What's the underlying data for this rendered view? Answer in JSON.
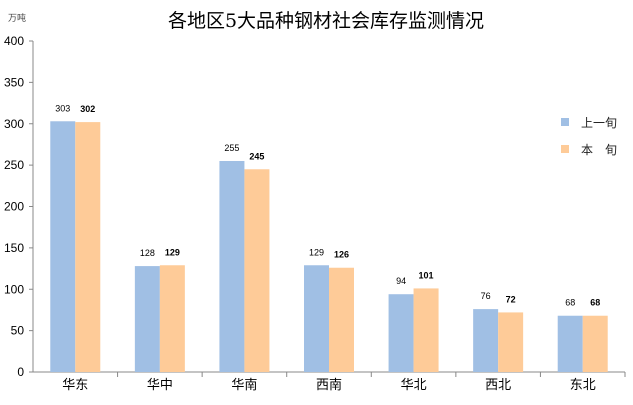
{
  "chart_data": {
    "type": "bar",
    "title": "各地区5大品种钢材社会库存监测情况",
    "ylabel": "万吨",
    "xlabel": "",
    "ylim": [
      0,
      400
    ],
    "yticks": [
      0,
      50,
      100,
      150,
      200,
      250,
      300,
      350,
      400
    ],
    "grid": false,
    "legend_position": "right",
    "categories": [
      "华东",
      "华中",
      "华南",
      "西南",
      "华北",
      "西北",
      "东北"
    ],
    "series": [
      {
        "name": "上一旬",
        "color": "#a0bfe4",
        "values": [
          303,
          128,
          255,
          129,
          94,
          76,
          68
        ]
      },
      {
        "name": "本　旬",
        "color": "#fecb98",
        "values": [
          302,
          129,
          245,
          126,
          101,
          72,
          68
        ]
      }
    ]
  }
}
